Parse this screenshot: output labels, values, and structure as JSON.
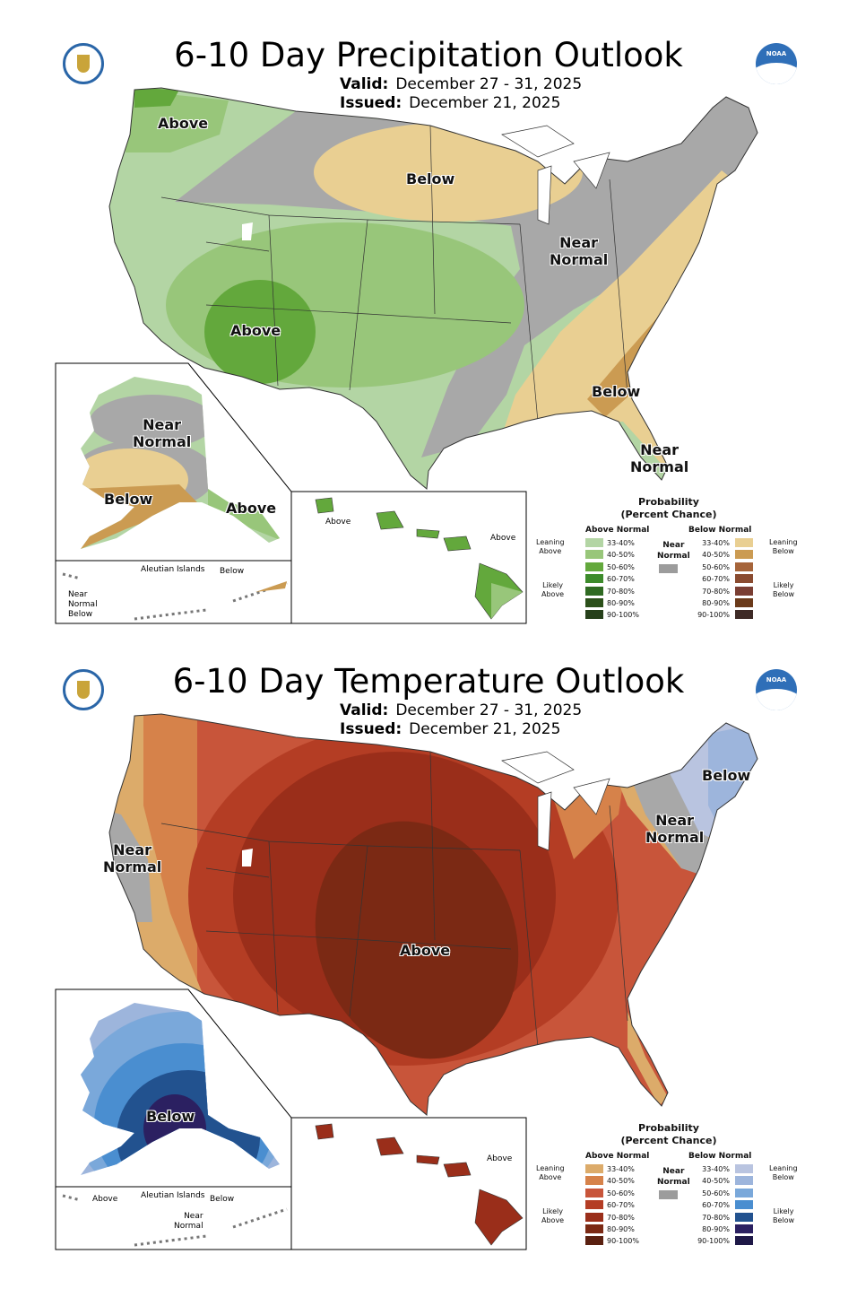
{
  "precipitation": {
    "title": "6-10 Day Precipitation Outlook",
    "valid_label": "Valid:",
    "valid": "December 27 - 31, 2025",
    "issued_label": "Issued:",
    "issued": "December 21, 2025",
    "map_labels": {
      "nw_above": "Above",
      "north_below": "Below",
      "ohio_near_normal": "Near\nNormal",
      "sw_above": "Above",
      "se_below": "Below",
      "fl_near_normal": "Near\nNormal"
    },
    "alaska": {
      "near_normal": "Near\nNormal",
      "below": "Below",
      "above": "Above"
    },
    "aleutians": {
      "title": "Aleutian Islands",
      "below": "Below",
      "near_normal_below": "Near\nNormal\nBelow"
    },
    "hawaii": {
      "above_west": "Above",
      "above_east": "Above"
    },
    "legend": {
      "title": "Probability\n(Percent Chance)",
      "above_header": "Above Normal",
      "below_header": "Below Normal",
      "near_normal": "Near\nNormal",
      "leaning_above": "Leaning\nAbove",
      "likely_above": "Likely\nAbove",
      "leaning_below": "Leaning\nBelow",
      "likely_below": "Likely\nBelow",
      "ranges": [
        "33-40%",
        "40-50%",
        "50-60%",
        "60-70%",
        "70-80%",
        "80-90%",
        "90-100%"
      ],
      "above_colors": [
        "#b3d5a4",
        "#98c67a",
        "#63a83c",
        "#3d8b2b",
        "#2f6a22",
        "#2b501a",
        "#26401a"
      ],
      "below_colors": [
        "#e9cf92",
        "#cb9b52",
        "#a6643a",
        "#8a4b30",
        "#7a3e33",
        "#6b3a1a",
        "#3e2a26"
      ],
      "near_normal_color": "#9c9c9c"
    }
  },
  "temperature": {
    "title": "6-10 Day Temperature Outlook",
    "valid_label": "Valid:",
    "valid": "December 27 - 31, 2025",
    "issued_label": "Issued:",
    "issued": "December 21, 2025",
    "map_labels": {
      "ne_below": "Below",
      "ne_near_normal": "Near\nNormal",
      "west_near_normal": "Near\nNormal",
      "central_above": "Above"
    },
    "alaska": {
      "below": "Below"
    },
    "aleutians": {
      "title": "Aleutian Islands",
      "above": "Above",
      "below": "Below",
      "near_normal": "Near\nNormal"
    },
    "hawaii": {
      "above": "Above"
    },
    "legend": {
      "title": "Probability\n(Percent Chance)",
      "above_header": "Above Normal",
      "below_header": "Below Normal",
      "near_normal": "Near\nNormal",
      "leaning_above": "Leaning\nAbove",
      "likely_above": "Likely\nAbove",
      "leaning_below": "Leaning\nBelow",
      "likely_below": "Likely\nBelow",
      "ranges": [
        "33-40%",
        "40-50%",
        "50-60%",
        "60-70%",
        "70-80%",
        "80-90%",
        "90-100%"
      ],
      "above_colors": [
        "#dcab6a",
        "#d6824a",
        "#c8553a",
        "#b43d24",
        "#9a2e1a",
        "#7b2914",
        "#5a2010"
      ],
      "below_colors": [
        "#b9c4e0",
        "#9db5dc",
        "#7aa8da",
        "#4a8ed0",
        "#22528f",
        "#2b2061",
        "#1e1847"
      ],
      "near_normal_color": "#9c9c9c"
    }
  },
  "logos": {
    "left": "department-of-commerce-seal",
    "right": "NOAA"
  }
}
